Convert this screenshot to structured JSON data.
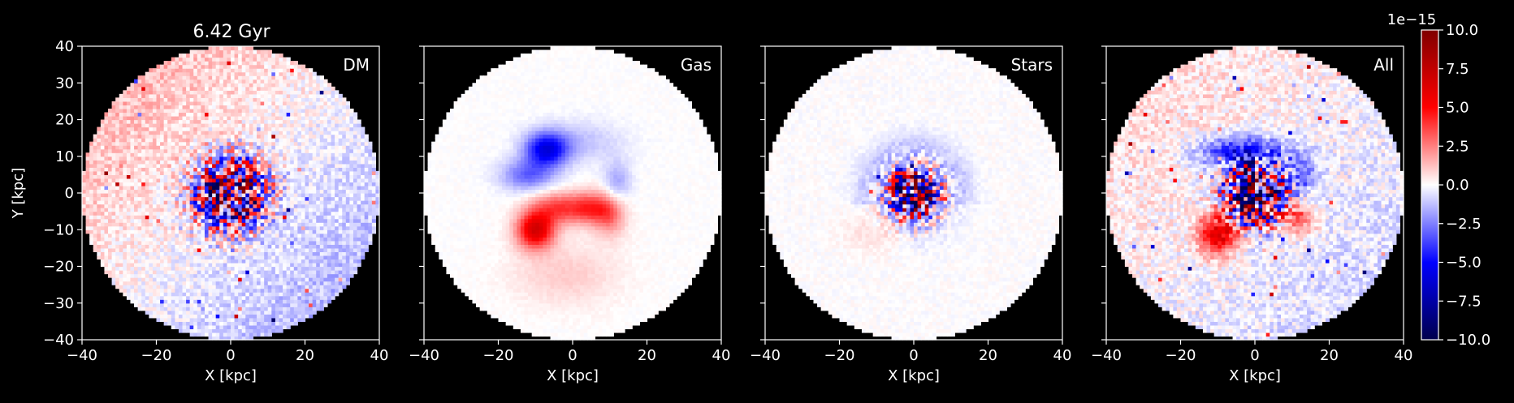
{
  "figure": {
    "title": "6.42 Gyr",
    "background": "#000000",
    "foreground": "#ffffff"
  },
  "chart_data": [
    {
      "type": "heatmap",
      "panel_label": "DM",
      "xlabel": "X [kpc]",
      "ylabel": "Y [kpc]",
      "xlim": [
        -40,
        40
      ],
      "ylim": [
        -40,
        40
      ],
      "xticks": [
        -40,
        -20,
        0,
        20,
        40
      ],
      "yticks": [
        -40,
        -30,
        -20,
        -10,
        0,
        10,
        20,
        30,
        40
      ],
      "tick_labels": [
        "−40",
        "−20",
        "0",
        "20",
        "40"
      ],
      "ytick_labels": [
        "−40",
        "−30",
        "−20",
        "−10",
        "0",
        "10",
        "20",
        "30",
        "40"
      ],
      "aperture_radius": 40,
      "colormap": "seismic",
      "pattern": "noisy weak field, faint red upper-left, blue lower-right, strong red/blue noise within 10 kpc of center"
    },
    {
      "type": "heatmap",
      "panel_label": "Gas",
      "xlabel": "X [kpc]",
      "ylabel": "",
      "xlim": [
        -40,
        40
      ],
      "ylim": [
        -40,
        40
      ],
      "xticks": [
        -40,
        -20,
        0,
        20,
        40
      ],
      "tick_labels": [
        "−40",
        "−20",
        "0",
        "20",
        "40"
      ],
      "aperture_radius": 40,
      "colormap": "seismic",
      "pattern": "smooth field: blue arm at (-8, 12), red arm at (-10, -10) extending to (10, -5)"
    },
    {
      "type": "heatmap",
      "panel_label": "Stars",
      "xlabel": "X [kpc]",
      "ylabel": "",
      "xlim": [
        -40,
        40
      ],
      "ylim": [
        -40,
        40
      ],
      "xticks": [
        -40,
        -20,
        0,
        20,
        40
      ],
      "tick_labels": [
        "−40",
        "−20",
        "0",
        "20",
        "40"
      ],
      "aperture_radius": 40,
      "colormap": "seismic",
      "pattern": "faint blue ring near r=12, strong red/blue noise in central 8 kpc"
    },
    {
      "type": "heatmap",
      "panel_label": "All",
      "xlabel": "X [kpc]",
      "ylabel": "",
      "xlim": [
        -40,
        40
      ],
      "ylim": [
        -40,
        40
      ],
      "xticks": [
        -40,
        -20,
        0,
        20,
        40
      ],
      "tick_labels": [
        "−40",
        "−20",
        "0",
        "20",
        "40"
      ],
      "aperture_radius": 40,
      "colormap": "seismic",
      "pattern": "sum of components: blue arm upper, red arm lower-left, noisy center"
    }
  ],
  "colorbar": {
    "offset_label": "1e−15",
    "vmin": -10.0,
    "vmax": 10.0,
    "ticks": [
      10.0,
      7.5,
      5.0,
      2.5,
      0.0,
      -2.5,
      -5.0,
      -7.5,
      -10.0
    ],
    "tick_labels": [
      "10.0",
      "7.5",
      "5.0",
      "2.5",
      "0.0",
      "−2.5",
      "−5.0",
      "−7.5",
      "−10.0"
    ],
    "colormap": "seismic"
  }
}
